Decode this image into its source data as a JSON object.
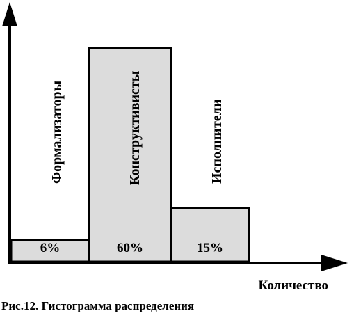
{
  "chart_data": {
    "type": "bar",
    "categories": [
      "Формализаторы",
      "Конструктивисты",
      "Исполнители"
    ],
    "values": [
      6,
      60,
      15
    ],
    "value_labels": [
      "6%",
      "60%",
      "15%"
    ],
    "xlabel": "Количество",
    "ylabel": "",
    "ylim": [
      0,
      64
    ],
    "grid": false,
    "legend": "none",
    "colors": {
      "bar_fill": "#dcdcdc",
      "bar_stroke": "#000000",
      "axis": "#000000",
      "background": "#ffffff"
    }
  },
  "caption": "Рис.12. Гистограмма распределения"
}
